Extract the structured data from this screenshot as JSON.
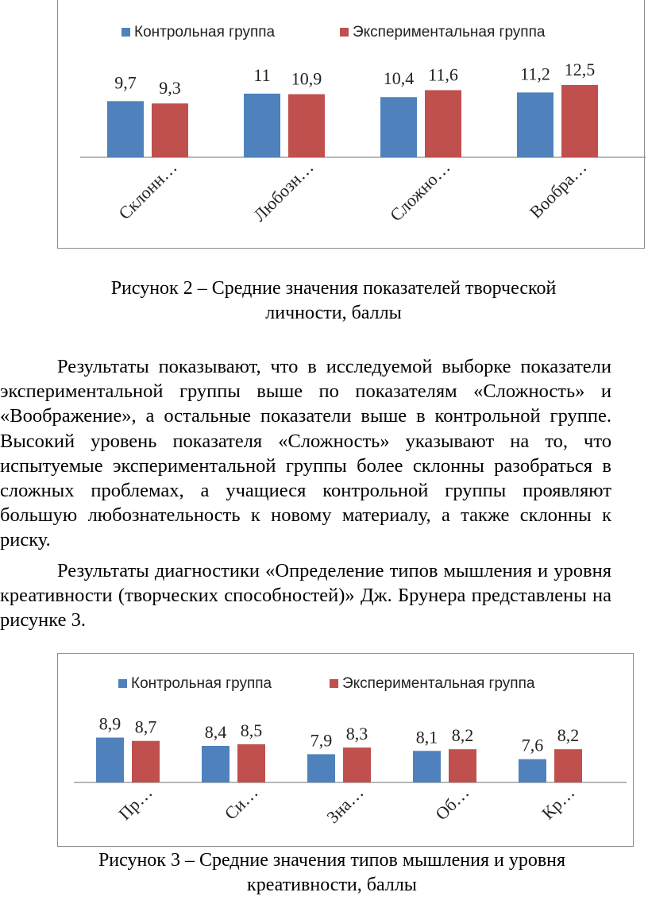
{
  "colors": {
    "control": "#4f81bd",
    "experimental": "#c0504d",
    "axis": "#8c8c8c"
  },
  "figure2": {
    "caption_line1": "Рисунок 2 – Средние значения показателей творческой",
    "caption_line2": "личности, баллы",
    "chart_data": {
      "type": "bar",
      "categories": [
        "Склонн…",
        "Любозн…",
        "Сложно…",
        "Вообра…"
      ],
      "series": [
        {
          "name": "Контрольная группа",
          "values": [
            9.7,
            11,
            10.4,
            11.2
          ],
          "labels": [
            "9,7",
            "11",
            "10,4",
            "11,2"
          ]
        },
        {
          "name": "Экспериментальная группа",
          "values": [
            9.3,
            10.9,
            11.6,
            12.5
          ],
          "labels": [
            "9,3",
            "10,9",
            "11,6",
            "12,5"
          ]
        }
      ],
      "ylim": [
        0,
        14
      ],
      "legend": "top",
      "grid": false
    }
  },
  "paragraph1": "Результаты показывают, что в исследуемой выборке показатели экспериментальной группы выше по показателям «Сложность» и «Воображение», а остальные показатели выше в контрольной группе. Высокий уровень показателя «Сложность» указывают на то, что испытуемые экспериментальной группы более склонны разобраться в сложных проблемах, а учащиеся контрольной группы проявляют большую любознательность к новому материалу, а также склонны к риску.",
  "paragraph2": "Результаты диагностики «Определение типов мышления и уровня креативности (творческих способностей)» Дж. Брунера представлены на рисунке 3.",
  "figure3": {
    "caption_line1": "Рисунок 3 – Средние значения типов мышления и уровня",
    "caption_line2": "креативности, баллы",
    "chart_data": {
      "type": "bar",
      "categories": [
        "Пр…",
        "Си…",
        "Зна…",
        "Об…",
        "Кр…"
      ],
      "series": [
        {
          "name": "Контрольная группа",
          "values": [
            8.9,
            8.4,
            7.9,
            8.1,
            7.6
          ],
          "labels": [
            "8,9",
            "8,4",
            "7,9",
            "8,1",
            "7,6"
          ]
        },
        {
          "name": "Экспериментальная группа",
          "values": [
            8.7,
            8.5,
            8.3,
            8.2,
            8.2
          ],
          "labels": [
            "8,7",
            "8,5",
            "8,3",
            "8,2",
            "8,2"
          ]
        }
      ],
      "ylim": [
        6.2,
        9.5
      ],
      "legend": "top",
      "grid": false
    }
  }
}
